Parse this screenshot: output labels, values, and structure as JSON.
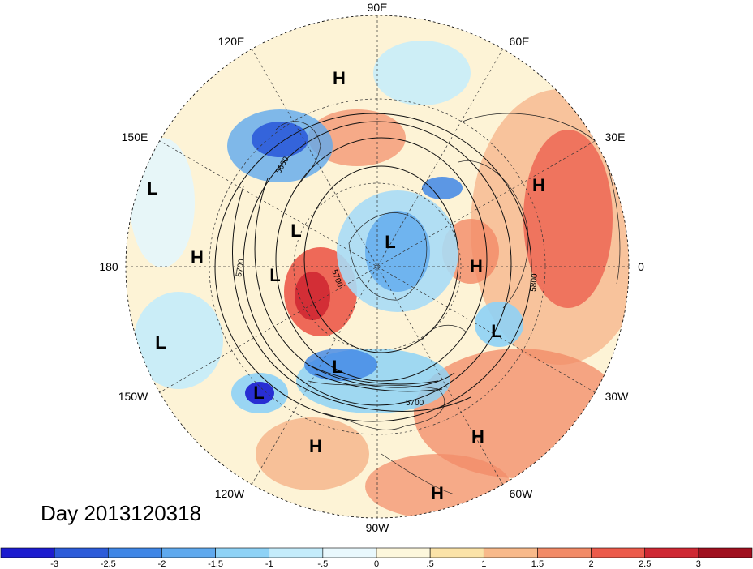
{
  "title": "Day 2013120318",
  "longitude_labels": [
    "90E",
    "60E",
    "30E",
    "0",
    "30W",
    "60W",
    "90W",
    "120W",
    "150W",
    "180",
    "150E",
    "120E"
  ],
  "pressure_centers": [
    "H",
    "L",
    "L",
    "H",
    "L",
    "L",
    "H",
    "H",
    "L",
    "L",
    "L",
    "L",
    "H",
    "H",
    "H"
  ],
  "contour_labels": [
    "5600",
    "5700",
    "5700",
    "5800",
    "5700"
  ],
  "colorbar": {
    "ticks": [
      "-3",
      "-2.5",
      "-2",
      "-1.5",
      "-1",
      "-.5",
      "0",
      ".5",
      "1",
      "1.5",
      "2",
      "2.5",
      "3"
    ],
    "colors": [
      "#1c1ccf",
      "#2c5bd9",
      "#3f86e6",
      "#5fa9ee",
      "#8ed2f6",
      "#c4ecfb",
      "#e9f8fd",
      "#fdf7dc",
      "#fbe3a8",
      "#f8b98a",
      "#f28a66",
      "#ec5a4a",
      "#cf2833",
      "#a0101f"
    ]
  }
}
